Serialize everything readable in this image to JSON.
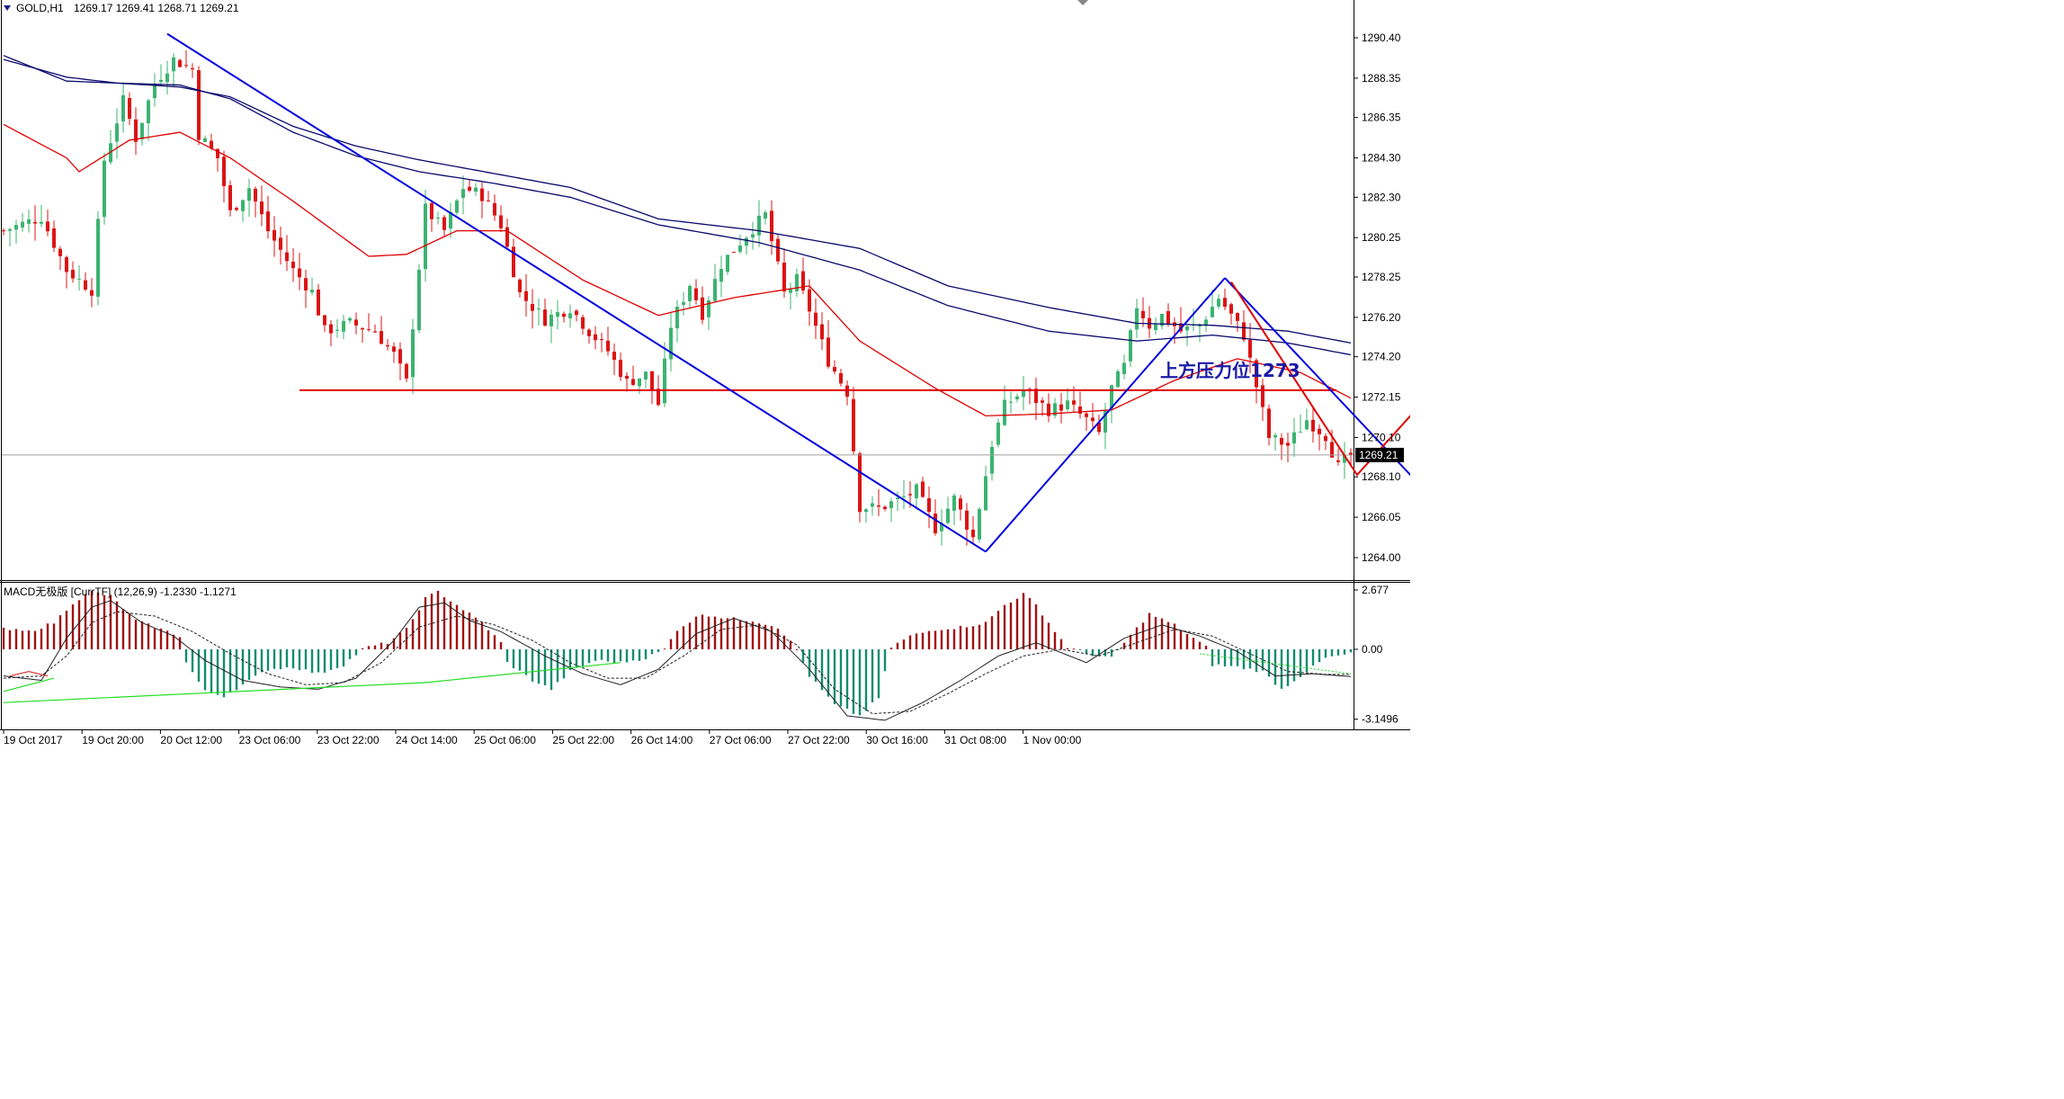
{
  "window": {
    "symbol_label": "GOLD,H1",
    "ohlc_label": "1269.17 1269.41 1268.71 1269.21",
    "current_price_label": "1269.21"
  },
  "indicator": {
    "label": "MACD无极版 [CurrTF] (12,26,9) -1.2330 -1.1271",
    "axis_ticks": [
      "2.677",
      "0.00",
      "-3.1496"
    ]
  },
  "annotation": {
    "text": "上方压力位1273"
  },
  "colors": {
    "bull_candle": "#3cb371",
    "bear_candle": "#dc1414",
    "ma_red": "#e00000",
    "ma_navy": "#0a0a6e",
    "trend_blue": "#0000e0",
    "projection_red": "#e00000",
    "macd_pos": "#a01010",
    "macd_neg": "#108c6e",
    "signal_green": "#22dd22"
  },
  "chart_data": [
    {
      "type": "candlestick",
      "title": "GOLD,H1",
      "y_ticks": [
        "1290.40",
        "1288.35",
        "1286.35",
        "1284.30",
        "1282.30",
        "1280.25",
        "1278.25",
        "1276.20",
        "1274.20",
        "1272.15",
        "1270.10",
        "1268.10",
        "1266.05",
        "1264.00"
      ],
      "x_ticks": [
        "19 Oct 2017",
        "19 Oct 20:00",
        "20 Oct 12:00",
        "23 Oct 06:00",
        "23 Oct 22:00",
        "24 Oct 14:00",
        "25 Oct 06:00",
        "25 Oct 22:00",
        "26 Oct 14:00",
        "27 Oct 06:00",
        "27 Oct 22:00",
        "30 Oct 16:00",
        "31 Oct 08:00",
        "1 Nov 00:00"
      ],
      "ylim": [
        1263.3,
        1291.5
      ],
      "last_price": 1269.21,
      "resistance_level": 1272.5,
      "close_path": [
        [
          0,
          1280.6
        ],
        [
          6,
          1281.3
        ],
        [
          10,
          1278.6
        ],
        [
          14,
          1277.6
        ],
        [
          16,
          1284.2
        ],
        [
          19,
          1287.2
        ],
        [
          21,
          1285.3
        ],
        [
          24,
          1288.1
        ],
        [
          27,
          1289.3
        ],
        [
          30,
          1288.8
        ],
        [
          31,
          1285.5
        ],
        [
          34,
          1284.3
        ],
        [
          36,
          1281.5
        ],
        [
          39,
          1282.8
        ],
        [
          42,
          1280.6
        ],
        [
          46,
          1278.6
        ],
        [
          49,
          1277.5
        ],
        [
          51,
          1275.5
        ],
        [
          55,
          1275.9
        ],
        [
          59,
          1275.5
        ],
        [
          62,
          1274.3
        ],
        [
          64,
          1272.9
        ],
        [
          67,
          1281.7
        ],
        [
          70,
          1280.6
        ],
        [
          73,
          1282.8
        ],
        [
          76,
          1282.4
        ],
        [
          79,
          1280.9
        ],
        [
          82,
          1277.4
        ],
        [
          86,
          1276.1
        ],
        [
          90,
          1276.7
        ],
        [
          93,
          1275.5
        ],
        [
          96,
          1274.5
        ],
        [
          99,
          1272.9
        ],
        [
          102,
          1273.3
        ],
        [
          104,
          1271.8
        ],
        [
          106,
          1275.8
        ],
        [
          109,
          1277.9
        ],
        [
          111,
          1276.4
        ],
        [
          114,
          1278.9
        ],
        [
          118,
          1280.4
        ],
        [
          121,
          1281.4
        ],
        [
          124,
          1277.4
        ],
        [
          126,
          1278.1
        ],
        [
          128,
          1276.6
        ],
        [
          131,
          1274.0
        ],
        [
          134,
          1272.4
        ],
        [
          136,
          1266.6
        ],
        [
          139,
          1266.5
        ],
        [
          142,
          1266.9
        ],
        [
          145,
          1267.4
        ],
        [
          148,
          1265.5
        ],
        [
          151,
          1267.0
        ],
        [
          154,
          1265.0
        ],
        [
          157,
          1269.8
        ],
        [
          159,
          1271.7
        ],
        [
          162,
          1272.5
        ],
        [
          166,
          1271.5
        ],
        [
          169,
          1271.8
        ],
        [
          172,
          1271.0
        ],
        [
          174,
          1270.3
        ],
        [
          176,
          1272.6
        ],
        [
          178,
          1273.7
        ],
        [
          180,
          1276.8
        ],
        [
          182,
          1275.8
        ],
        [
          184,
          1276.3
        ],
        [
          187,
          1275.5
        ],
        [
          190,
          1275.8
        ],
        [
          193,
          1277.2
        ],
        [
          195,
          1276.3
        ],
        [
          197,
          1275.3
        ],
        [
          199,
          1272.7
        ],
        [
          201,
          1270.1
        ],
        [
          204,
          1269.7
        ],
        [
          207,
          1271.0
        ],
        [
          210,
          1270.2
        ],
        [
          212,
          1268.6
        ],
        [
          214,
          1269.21
        ]
      ],
      "ma_red_path": [
        [
          0,
          1286.0
        ],
        [
          10,
          1284.3
        ],
        [
          12,
          1283.6
        ],
        [
          20,
          1285.2
        ],
        [
          28,
          1285.6
        ],
        [
          36,
          1284.3
        ],
        [
          46,
          1282.1
        ],
        [
          58,
          1279.3
        ],
        [
          64,
          1279.4
        ],
        [
          72,
          1280.6
        ],
        [
          80,
          1280.6
        ],
        [
          92,
          1278.1
        ],
        [
          104,
          1276.3
        ],
        [
          116,
          1277.2
        ],
        [
          128,
          1277.8
        ],
        [
          136,
          1275.0
        ],
        [
          148,
          1272.6
        ],
        [
          156,
          1271.2
        ],
        [
          166,
          1271.3
        ],
        [
          176,
          1271.5
        ],
        [
          186,
          1273.0
        ],
        [
          196,
          1274.1
        ],
        [
          206,
          1273.4
        ],
        [
          214,
          1272.1
        ]
      ],
      "ma_navy1_path": [
        [
          0,
          1289.3
        ],
        [
          10,
          1288.4
        ],
        [
          18,
          1288.1
        ],
        [
          28,
          1287.9
        ],
        [
          36,
          1287.4
        ],
        [
          46,
          1285.9
        ],
        [
          56,
          1284.9
        ],
        [
          66,
          1284.2
        ],
        [
          78,
          1283.5
        ],
        [
          90,
          1282.8
        ],
        [
          104,
          1281.2
        ],
        [
          120,
          1280.6
        ],
        [
          136,
          1279.7
        ],
        [
          150,
          1277.8
        ],
        [
          166,
          1276.7
        ],
        [
          180,
          1275.9
        ],
        [
          192,
          1275.8
        ],
        [
          204,
          1275.5
        ],
        [
          214,
          1274.9
        ]
      ],
      "ma_navy2_path": [
        [
          0,
          1289.5
        ],
        [
          10,
          1288.2
        ],
        [
          18,
          1288.1
        ],
        [
          28,
          1288.0
        ],
        [
          36,
          1287.3
        ],
        [
          46,
          1285.6
        ],
        [
          56,
          1284.4
        ],
        [
          66,
          1283.6
        ],
        [
          78,
          1283.0
        ],
        [
          90,
          1282.3
        ],
        [
          104,
          1280.9
        ],
        [
          120,
          1280.0
        ],
        [
          136,
          1278.6
        ],
        [
          150,
          1276.8
        ],
        [
          166,
          1275.5
        ],
        [
          180,
          1275.0
        ],
        [
          192,
          1275.3
        ],
        [
          204,
          1274.9
        ],
        [
          214,
          1274.3
        ]
      ],
      "trend_lines": [
        [
          [
            26,
            1290.6
          ],
          [
            156,
            1264.3
          ]
        ],
        [
          [
            156,
            1264.3
          ],
          [
            194,
            1278.2
          ]
        ],
        [
          [
            194,
            1278.2
          ],
          [
            232,
            1265.3
          ]
        ]
      ],
      "projection": [
        [
          195,
          1278.0
        ],
        [
          215,
          1268.2
        ],
        [
          226,
          1272.1
        ],
        [
          240,
          1265.4
        ]
      ]
    },
    {
      "type": "bar",
      "title": "MACD无极版 [CurrTF] (12,26,9)",
      "ylim": [
        -3.1496,
        2.677
      ],
      "histogram": [
        [
          0,
          0.9
        ],
        [
          4,
          0.8
        ],
        [
          8,
          1.2
        ],
        [
          11,
          2.1
        ],
        [
          14,
          2.6
        ],
        [
          17,
          2.4
        ],
        [
          21,
          1.3
        ],
        [
          25,
          0.9
        ],
        [
          28,
          0.6
        ],
        [
          29,
          -0.6
        ],
        [
          32,
          -1.9
        ],
        [
          35,
          -2.1
        ],
        [
          38,
          -1.6
        ],
        [
          42,
          -0.9
        ],
        [
          46,
          -0.8
        ],
        [
          50,
          -1.1
        ],
        [
          54,
          -0.7
        ],
        [
          57,
          0
        ],
        [
          58,
          0.1
        ],
        [
          61,
          0.3
        ],
        [
          64,
          0.9
        ],
        [
          67,
          2.3
        ],
        [
          69,
          2.6
        ],
        [
          72,
          2.0
        ],
        [
          76,
          1.2
        ],
        [
          79,
          0.3
        ],
        [
          80,
          -0.6
        ],
        [
          84,
          -1.4
        ],
        [
          87,
          -1.8
        ],
        [
          90,
          -1.0
        ],
        [
          94,
          -0.5
        ],
        [
          98,
          -0.6
        ],
        [
          102,
          -0.4
        ],
        [
          105,
          0
        ],
        [
          107,
          0.9
        ],
        [
          111,
          1.6
        ],
        [
          115,
          1.4
        ],
        [
          119,
          1.3
        ],
        [
          123,
          1.0
        ],
        [
          126,
          0
        ],
        [
          128,
          -1.2
        ],
        [
          132,
          -2.5
        ],
        [
          136,
          -3.0
        ],
        [
          139,
          -2.2
        ],
        [
          141,
          0.1
        ],
        [
          144,
          0.6
        ],
        [
          148,
          0.9
        ],
        [
          152,
          1.0
        ],
        [
          156,
          1.2
        ],
        [
          159,
          2.0
        ],
        [
          162,
          2.5
        ],
        [
          164,
          2.0
        ],
        [
          167,
          0.8
        ],
        [
          169,
          0.1
        ],
        [
          172,
          -0.2
        ],
        [
          176,
          -0.4
        ],
        [
          178,
          0.3
        ],
        [
          182,
          1.6
        ],
        [
          186,
          1.1
        ],
        [
          189,
          0.5
        ],
        [
          191,
          0.1
        ],
        [
          192,
          -0.7
        ],
        [
          196,
          -0.8
        ],
        [
          200,
          -1.0
        ],
        [
          203,
          -1.8
        ],
        [
          206,
          -1.2
        ],
        [
          210,
          -0.4
        ],
        [
          214,
          -0.2
        ]
      ],
      "macd_line_path": [
        [
          0,
          -1.2
        ],
        [
          6,
          -1.4
        ],
        [
          10,
          0.5
        ],
        [
          14,
          1.9
        ],
        [
          17,
          2.2
        ],
        [
          22,
          1.2
        ],
        [
          27,
          0.6
        ],
        [
          32,
          -0.5
        ],
        [
          38,
          -1.4
        ],
        [
          44,
          -1.7
        ],
        [
          50,
          -1.8
        ],
        [
          56,
          -1.3
        ],
        [
          62,
          0.4
        ],
        [
          66,
          1.9
        ],
        [
          70,
          2.1
        ],
        [
          74,
          1.3
        ],
        [
          79,
          0.8
        ],
        [
          86,
          -0.3
        ],
        [
          92,
          -1.1
        ],
        [
          98,
          -1.6
        ],
        [
          104,
          -0.9
        ],
        [
          110,
          0.7
        ],
        [
          116,
          1.4
        ],
        [
          122,
          0.8
        ],
        [
          128,
          -0.9
        ],
        [
          134,
          -3.0
        ],
        [
          140,
          -3.2
        ],
        [
          146,
          -2.4
        ],
        [
          152,
          -1.4
        ],
        [
          158,
          -0.3
        ],
        [
          164,
          0.3
        ],
        [
          172,
          -0.6
        ],
        [
          178,
          0.5
        ],
        [
          184,
          1.1
        ],
        [
          190,
          0.6
        ],
        [
          196,
          -0.1
        ],
        [
          202,
          -1.2
        ],
        [
          208,
          -1.1
        ],
        [
          214,
          -1.23
        ]
      ],
      "signal_line_path": [
        [
          0,
          -1.3
        ],
        [
          6,
          -1.2
        ],
        [
          10,
          -0.3
        ],
        [
          14,
          1.2
        ],
        [
          18,
          1.7
        ],
        [
          24,
          1.5
        ],
        [
          30,
          0.8
        ],
        [
          36,
          -0.2
        ],
        [
          42,
          -1.1
        ],
        [
          48,
          -1.6
        ],
        [
          54,
          -1.5
        ],
        [
          60,
          -0.6
        ],
        [
          66,
          1.0
        ],
        [
          72,
          1.5
        ],
        [
          78,
          1.1
        ],
        [
          84,
          0.4
        ],
        [
          90,
          -0.6
        ],
        [
          96,
          -1.3
        ],
        [
          102,
          -1.3
        ],
        [
          108,
          -0.3
        ],
        [
          114,
          0.9
        ],
        [
          120,
          1.1
        ],
        [
          126,
          0.2
        ],
        [
          132,
          -1.8
        ],
        [
          138,
          -2.9
        ],
        [
          144,
          -2.8
        ],
        [
          150,
          -2.0
        ],
        [
          156,
          -1.1
        ],
        [
          162,
          -0.3
        ],
        [
          168,
          0.0
        ],
        [
          174,
          -0.3
        ],
        [
          180,
          0.3
        ],
        [
          186,
          0.9
        ],
        [
          192,
          0.6
        ],
        [
          198,
          -0.2
        ],
        [
          204,
          -1.0
        ],
        [
          210,
          -1.13
        ],
        [
          214,
          -1.13
        ]
      ]
    }
  ]
}
